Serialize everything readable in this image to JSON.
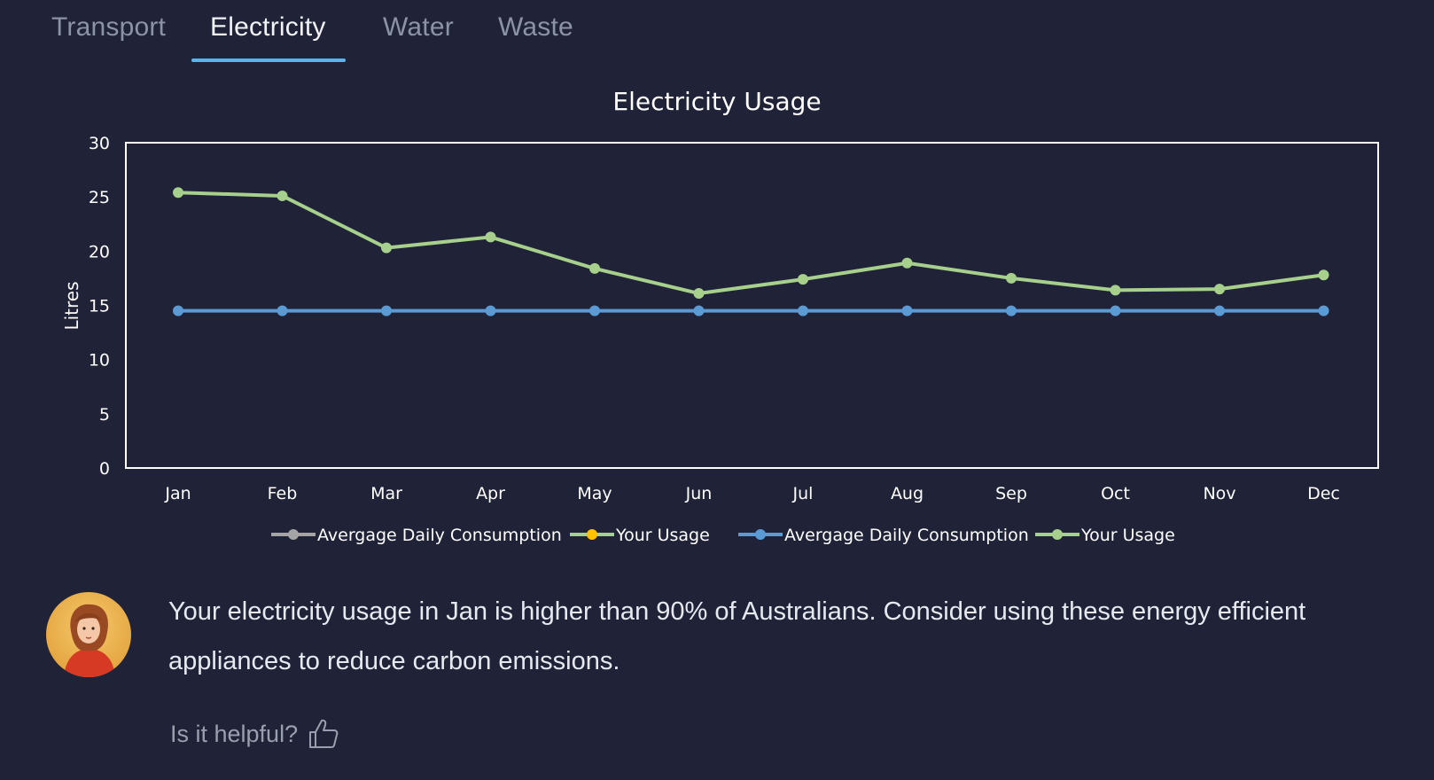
{
  "tabs": [
    {
      "label": "Transport",
      "active": false
    },
    {
      "label": "Electricity",
      "active": true
    },
    {
      "label": "Water",
      "active": false
    },
    {
      "label": "Waste",
      "active": false
    }
  ],
  "colors": {
    "background": "#202337",
    "tab_underline": "#57b6ef",
    "green_series": "#a7d08c",
    "blue_series": "#5b9bd5",
    "gray_legend": "#a5a5a5",
    "orange_legend": "#ffc000"
  },
  "chart_data": {
    "type": "line",
    "title": "Electricity Usage",
    "xlabel": "",
    "ylabel": "Litres",
    "ylim": [
      0,
      30
    ],
    "yticks": [
      0,
      5,
      10,
      15,
      20,
      25,
      30
    ],
    "categories": [
      "Jan",
      "Feb",
      "Mar",
      "Apr",
      "May",
      "Jun",
      "Jul",
      "Aug",
      "Sep",
      "Oct",
      "Nov",
      "Dec"
    ],
    "series": [
      {
        "name": "Avergage Daily Consumption",
        "values": [
          14.5,
          14.5,
          14.5,
          14.5,
          14.5,
          14.5,
          14.5,
          14.5,
          14.5,
          14.5,
          14.5,
          14.5
        ],
        "color": "#5b9bd5"
      },
      {
        "name": "Your Usage",
        "values": [
          25.4,
          25.1,
          20.3,
          21.3,
          18.4,
          16.1,
          17.4,
          18.9,
          17.5,
          16.4,
          16.5,
          17.8
        ],
        "color": "#a7d08c"
      }
    ],
    "legend": [
      {
        "name": "Avergage Daily Consumption",
        "line": "#a5a5a5",
        "marker": "#a5a5a5"
      },
      {
        "name": "Your Usage",
        "line": "#a7d08c",
        "marker": "#ffc000"
      },
      {
        "name": "Avergage Daily Consumption",
        "line": "#5b9bd5",
        "marker": "#5b9bd5"
      },
      {
        "name": "Your Usage",
        "line": "#a7d08c",
        "marker": "#a7d08c"
      }
    ],
    "legend_position": "bottom",
    "grid": false
  },
  "advice": {
    "text": "Your electricity usage in Jan is higher than 90% of Australians. Consider using these energy efficient appliances to reduce carbon emissions."
  },
  "feedback": {
    "question": "Is it helpful?",
    "icon": "thumbs-up-icon"
  }
}
